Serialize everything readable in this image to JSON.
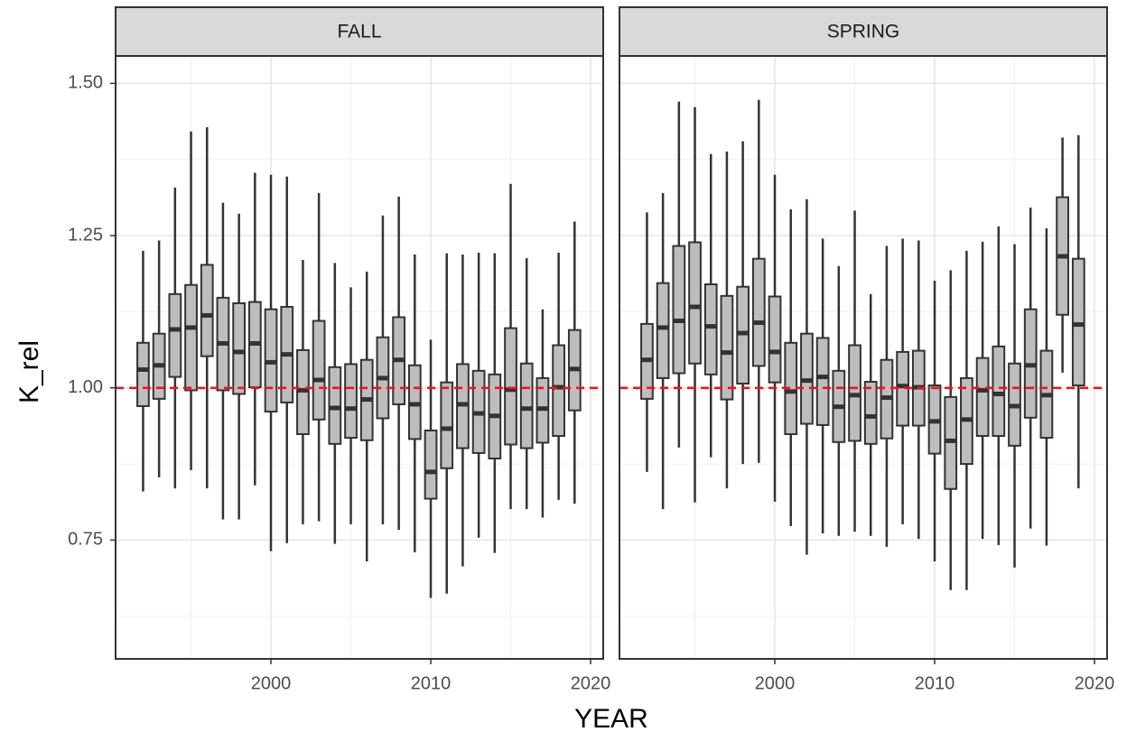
{
  "chart_data": {
    "type": "boxplot",
    "y_label": "K_rel",
    "x_label": "YEAR",
    "ylim": [
      0.555,
      1.545
    ],
    "yticks": [
      {
        "value": 0.75,
        "label": "0.75"
      },
      {
        "value": 1,
        "label": "1.00"
      },
      {
        "value": 1.25,
        "label": "1.25"
      },
      {
        "value": 1.5,
        "label": "1.50"
      }
    ],
    "yminor": [
      0.625,
      0.875,
      1.125,
      1.375
    ],
    "xlim": [
      1990.28,
      2020.79
    ],
    "xticks": [
      2000,
      2010,
      2020
    ],
    "xminor": [
      1995,
      2005,
      2015
    ],
    "grid": true,
    "box_color": "#bdbdbd",
    "line_color": "#333333",
    "reference_line": {
      "value": 1,
      "color": "#e41a1c"
    },
    "facets": [
      {
        "title": "FALL",
        "x": [
          1992,
          1993,
          1994,
          1995,
          1996,
          1997,
          1998,
          1999,
          2000,
          2001,
          2002,
          2003,
          2004,
          2005,
          2006,
          2007,
          2008,
          2009,
          2010,
          2011,
          2012,
          2013,
          2014,
          2015,
          2016,
          2017,
          2018,
          2019
        ],
        "high": [
          1.225,
          1.242,
          1.329,
          1.421,
          1.428,
          1.304,
          1.286,
          1.353,
          1.35,
          1.347,
          1.21,
          1.32,
          1.205,
          1.165,
          1.191,
          1.283,
          1.314,
          1.219,
          1.079,
          1.221,
          1.219,
          1.222,
          1.221,
          1.335,
          1.213,
          1.129,
          1.222,
          1.273
        ],
        "q3": [
          1.074,
          1.089,
          1.154,
          1.169,
          1.202,
          1.148,
          1.139,
          1.141,
          1.129,
          1.133,
          1.062,
          1.11,
          1.034,
          1.039,
          1.046,
          1.083,
          1.116,
          1.037,
          0.93,
          1.009,
          1.039,
          1.028,
          1.022,
          1.098,
          1.04,
          1.016,
          1.07,
          1.095
        ],
        "median": [
          1.03,
          1.037,
          1.096,
          1.099,
          1.119,
          1.073,
          1.059,
          1.073,
          1.042,
          1.055,
          0.996,
          1.013,
          0.967,
          0.966,
          0.981,
          1.016,
          1.046,
          0.973,
          0.862,
          0.933,
          0.973,
          0.958,
          0.954,
          0.997,
          0.966,
          0.966,
          1.001,
          1.031
        ],
        "q1": [
          0.97,
          0.982,
          1.018,
          0.996,
          1.052,
          0.996,
          0.99,
          1.001,
          0.961,
          0.976,
          0.924,
          0.948,
          0.908,
          0.918,
          0.914,
          0.95,
          0.973,
          0.916,
          0.818,
          0.868,
          0.901,
          0.893,
          0.884,
          0.907,
          0.901,
          0.91,
          0.921,
          0.963
        ],
        "low": [
          0.83,
          0.853,
          0.835,
          0.865,
          0.835,
          0.784,
          0.784,
          0.84,
          0.732,
          0.745,
          0.776,
          0.781,
          0.744,
          0.776,
          0.715,
          0.776,
          0.767,
          0.73,
          0.655,
          0.662,
          0.707,
          0.754,
          0.729,
          0.801,
          0.801,
          0.787,
          0.816,
          0.81
        ]
      },
      {
        "title": "SPRING",
        "x": [
          1992,
          1993,
          1994,
          1995,
          1996,
          1997,
          1998,
          1999,
          2000,
          2001,
          2002,
          2003,
          2004,
          2005,
          2006,
          2007,
          2008,
          2009,
          2010,
          2011,
          2012,
          2013,
          2014,
          2015,
          2016,
          2017,
          2018,
          2019
        ],
        "high": [
          1.288,
          1.32,
          1.47,
          1.461,
          1.384,
          1.388,
          1.405,
          1.473,
          1.35,
          1.293,
          1.31,
          1.245,
          1.2,
          1.291,
          1.154,
          1.233,
          1.245,
          1.242,
          1.176,
          1.193,
          1.225,
          1.24,
          1.265,
          1.236,
          1.296,
          1.262,
          1.411,
          1.415
        ],
        "q3": [
          1.105,
          1.172,
          1.233,
          1.239,
          1.17,
          1.151,
          1.166,
          1.212,
          1.15,
          1.074,
          1.089,
          1.082,
          1.028,
          1.07,
          1.01,
          1.046,
          1.059,
          1.061,
          1.004,
          0.985,
          1.016,
          1.049,
          1.068,
          1.04,
          1.129,
          1.061,
          1.313,
          1.212
        ],
        "median": [
          1.046,
          1.099,
          1.11,
          1.133,
          1.101,
          1.058,
          1.09,
          1.107,
          1.059,
          0.994,
          1.012,
          1.018,
          0.969,
          0.988,
          0.953,
          0.984,
          1.003,
          1.001,
          0.945,
          0.913,
          0.948,
          0.996,
          0.99,
          0.97,
          1.037,
          0.988,
          1.216,
          1.104
        ],
        "q1": [
          0.982,
          1.016,
          1.024,
          1.04,
          1.022,
          0.981,
          1.007,
          1.036,
          1.009,
          0.924,
          0.941,
          0.939,
          0.911,
          0.913,
          0.908,
          0.917,
          0.938,
          0.938,
          0.892,
          0.834,
          0.875,
          0.921,
          0.921,
          0.905,
          0.951,
          0.918,
          1.12,
          1.004
        ],
        "low": [
          0.862,
          0.801,
          0.902,
          0.812,
          0.886,
          0.835,
          0.875,
          0.877,
          0.813,
          0.773,
          0.726,
          0.761,
          0.757,
          0.764,
          0.757,
          0.739,
          0.776,
          0.752,
          0.715,
          0.668,
          0.668,
          0.752,
          0.742,
          0.705,
          0.769,
          0.741,
          1.025,
          0.835
        ]
      }
    ]
  }
}
